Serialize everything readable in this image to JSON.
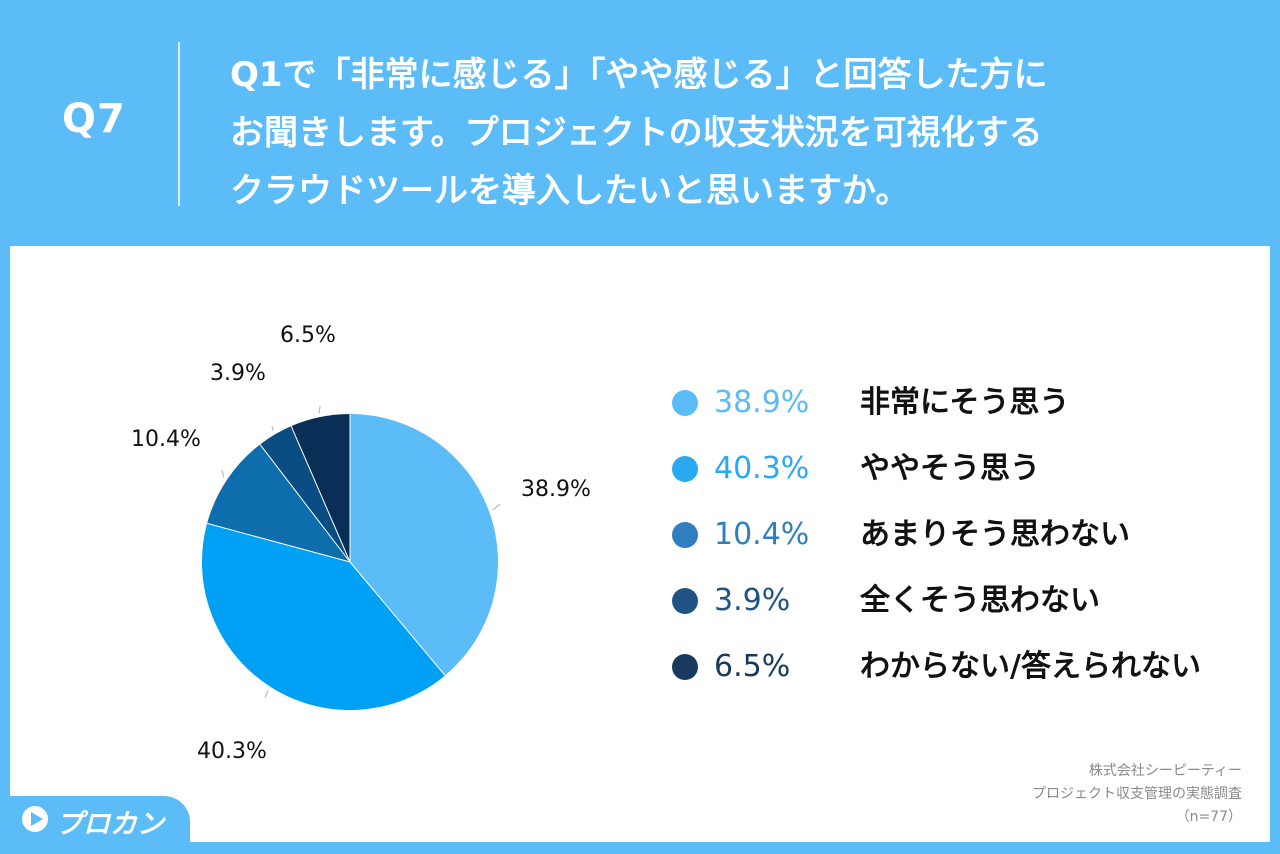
{
  "header": {
    "q_number": "Q7",
    "question_lines": [
      "Q1で「非常に感じる」「やや感じる」と回答した方に",
      "お聞きします。プロジェクトの収支状況を可視化する",
      "クラウドツールを導入したいと思いますか。"
    ]
  },
  "chart_data": {
    "type": "pie",
    "categories": [
      "非常にそう思う",
      "ややそう思う",
      "あまりそう思わない",
      "全くそう思わない",
      "わからない/答えられない"
    ],
    "values": [
      38.9,
      40.3,
      10.4,
      3.9,
      6.5
    ],
    "slice_labels": [
      "38.9%",
      "40.3%",
      "10.4%",
      "3.9%",
      "6.5%"
    ],
    "colors": [
      "#5bbcf8",
      "#00a0f5",
      "#0d6dad",
      "#0a4d82",
      "#0a2f57"
    ],
    "start": "12 o'clock, clockwise",
    "legend_position": "right"
  },
  "legend": [
    {
      "pct": "38.9%",
      "label": "非常にそう思う",
      "color": "#5bbcf8"
    },
    {
      "pct": "40.3%",
      "label": "ややそう思う",
      "color": "#2aa8f2"
    },
    {
      "pct": "10.4%",
      "label": "あまりそう思わない",
      "color": "#2f7fc0"
    },
    {
      "pct": "3.9%",
      "label": "全くそう思わない",
      "color": "#1f5384"
    },
    {
      "pct": "6.5%",
      "label": "わからない/答えられない",
      "color": "#173a5e"
    }
  ],
  "source": {
    "company": "株式会社シーピーティー",
    "survey": "プロジェクト収支管理の実態調査",
    "n": "（n=77）"
  },
  "logo": {
    "text": "プロカン"
  }
}
